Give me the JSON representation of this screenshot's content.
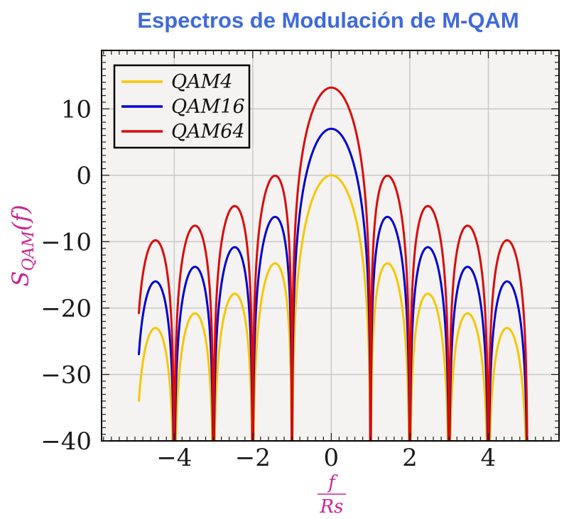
{
  "title": {
    "text": "Espectros de Modulación de M-QAM",
    "color": "#3F6AD8"
  },
  "chart_data": {
    "type": "line",
    "title": "Espectros de Modulación de M-QAM",
    "xlabel": "f/Rs",
    "xlabel_numerator": "f",
    "xlabel_denominator": "Rs",
    "ylabel": "S_QAM(f)",
    "ylabel_parts": {
      "base": "S",
      "sub": "QAM",
      "arg": "(f)"
    },
    "axis_label_color": "#C9258F",
    "tick_label_color": "#1a1a1a",
    "frame_color": "#000000",
    "grid": "major",
    "grid_color": "#C8C8C8",
    "plot_bg": "#F4F3F1",
    "xlim": [
      -5.85,
      5.8
    ],
    "ylim": [
      -40,
      18.8
    ],
    "xticks": [
      -4,
      -2,
      0,
      2,
      4
    ],
    "yticks": [
      10,
      0,
      -10,
      -20,
      -30,
      -40
    ],
    "minor_x_step": 0.2,
    "minor_y_step": 1,
    "legend_position": "top-left",
    "model": "S_dB(f) = offset_db + 20*log10(|sin(pi*f)/(pi*f)|), f normalized to Rs",
    "domain": [
      -4.9,
      5.0
    ],
    "clip_db_floor": -40,
    "series": [
      {
        "name": "QAM4",
        "color": "#F7C600",
        "offset_db": 0.0,
        "peak_db": 0.0,
        "endpoint_db_at_minus4_9": -33.9
      },
      {
        "name": "QAM16",
        "color": "#0000D0",
        "offset_db": 7.0,
        "peak_db": 7.0,
        "endpoint_db_at_minus4_9": -26.9
      },
      {
        "name": "QAM64",
        "color": "#DB0A0A",
        "offset_db": 13.2,
        "peak_db": 13.2,
        "endpoint_db_at_minus4_9": -20.7
      }
    ],
    "nulls_at": [
      -4,
      -3,
      -2,
      -1,
      1,
      2,
      3,
      4,
      5
    ],
    "sidelobe_peaks_base_curve": {
      "x": [
        1.43,
        2.46,
        3.47,
        4.48
      ],
      "db": [
        -13.3,
        -17.8,
        -20.8,
        -23.0
      ]
    }
  }
}
